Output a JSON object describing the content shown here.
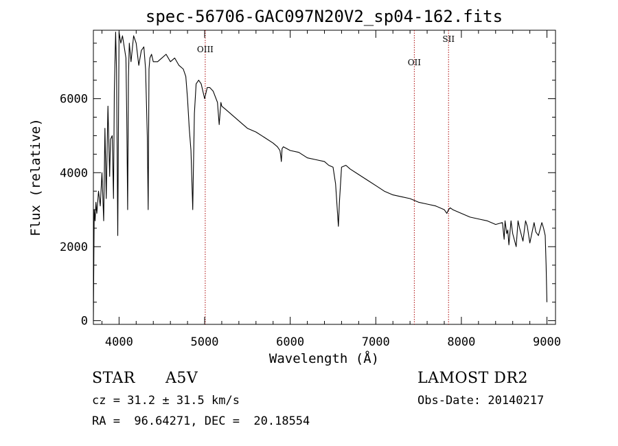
{
  "chart_data": {
    "type": "line",
    "title": "spec-56706-GAC097N20V2_sp04-162.fits",
    "xlabel": "Wavelength (Å)",
    "ylabel": "Flux (relative)",
    "xlim": [
      3700,
      9100
    ],
    "ylim": [
      -100,
      7850
    ],
    "x_ticks": [
      4000,
      5000,
      6000,
      7000,
      8000,
      9000
    ],
    "y_ticks": [
      0,
      2000,
      4000,
      6000
    ],
    "grid": false,
    "series": [
      {
        "color": "#000000",
        "x": [
          3700,
          3710,
          3720,
          3730,
          3740,
          3760,
          3780,
          3800,
          3820,
          3835,
          3850,
          3870,
          3890,
          3900,
          3920,
          3935,
          3945,
          3960,
          3970,
          3985,
          4000,
          4020,
          4040,
          4060,
          4080,
          4090,
          4100,
          4110,
          4120,
          4140,
          4170,
          4200,
          4230,
          4260,
          4290,
          4310,
          4330,
          4340,
          4350,
          4360,
          4380,
          4400,
          4450,
          4500,
          4550,
          4600,
          4650,
          4700,
          4750,
          4780,
          4800,
          4820,
          4840,
          4855,
          4861,
          4867,
          4880,
          4900,
          4930,
          4960,
          5000,
          5030,
          5060,
          5100,
          5150,
          5170,
          5190,
          5200,
          5250,
          5300,
          5400,
          5500,
          5600,
          5700,
          5800,
          5850,
          5880,
          5890,
          5896,
          5905,
          5920,
          6000,
          6100,
          6200,
          6300,
          6400,
          6450,
          6500,
          6530,
          6550,
          6563,
          6575,
          6600,
          6650,
          6700,
          6800,
          6900,
          7000,
          7100,
          7200,
          7300,
          7400,
          7500,
          7600,
          7700,
          7800,
          7830,
          7850,
          7870,
          7900,
          8000,
          8100,
          8200,
          8300,
          8400,
          8480,
          8500,
          8510,
          8530,
          8542,
          8555,
          8580,
          8600,
          8640,
          8662,
          8680,
          8720,
          8750,
          8770,
          8800,
          8850,
          8870,
          8900,
          8940,
          8960,
          8980,
          8990,
          9000
        ],
        "y": [
          0,
          3000,
          2700,
          3200,
          2900,
          3500,
          3100,
          4000,
          2700,
          5200,
          3300,
          5800,
          3900,
          4900,
          5000,
          3300,
          6200,
          7800,
          6800,
          2300,
          7800,
          7500,
          7700,
          7400,
          7100,
          5500,
          3000,
          6600,
          7500,
          7000,
          7700,
          7500,
          6900,
          7300,
          7400,
          6800,
          5000,
          3000,
          6800,
          7100,
          7200,
          7000,
          7000,
          7100,
          7200,
          7000,
          7100,
          6900,
          6800,
          6600,
          6000,
          5200,
          4600,
          3500,
          3000,
          3800,
          5600,
          6400,
          6500,
          6400,
          6000,
          6300,
          6300,
          6200,
          5900,
          5300,
          5900,
          5800,
          5700,
          5600,
          5400,
          5200,
          5100,
          4950,
          4800,
          4700,
          4600,
          4450,
          4300,
          4650,
          4700,
          4600,
          4550,
          4400,
          4350,
          4300,
          4200,
          4150,
          3700,
          3000,
          2550,
          3200,
          4150,
          4200,
          4100,
          3950,
          3800,
          3650,
          3500,
          3400,
          3350,
          3300,
          3200,
          3150,
          3100,
          3000,
          2900,
          3000,
          3050,
          3000,
          2900,
          2800,
          2750,
          2700,
          2600,
          2650,
          2200,
          2700,
          2350,
          2450,
          2050,
          2700,
          2350,
          2000,
          2700,
          2500,
          2150,
          2700,
          2550,
          2100,
          2650,
          2400,
          2300,
          2650,
          2500,
          2300,
          1500,
          500
        ]
      }
    ],
    "annotations": [
      {
        "label": "OIII",
        "x": 5007
      },
      {
        "label": "OII",
        "x": 7450
      },
      {
        "label": "SII",
        "x": 7850
      }
    ],
    "annotation_color": "#aa0000"
  },
  "info": {
    "object_type": "STAR",
    "subclass": "A5V",
    "redshift_line": "cz = 31.2 ± 31.5 km/s",
    "coords_line": "RA =  96.64271, DEC =  20.18554",
    "survey": "LAMOST DR2",
    "obs_date_line": "Obs-Date: 20140217"
  }
}
